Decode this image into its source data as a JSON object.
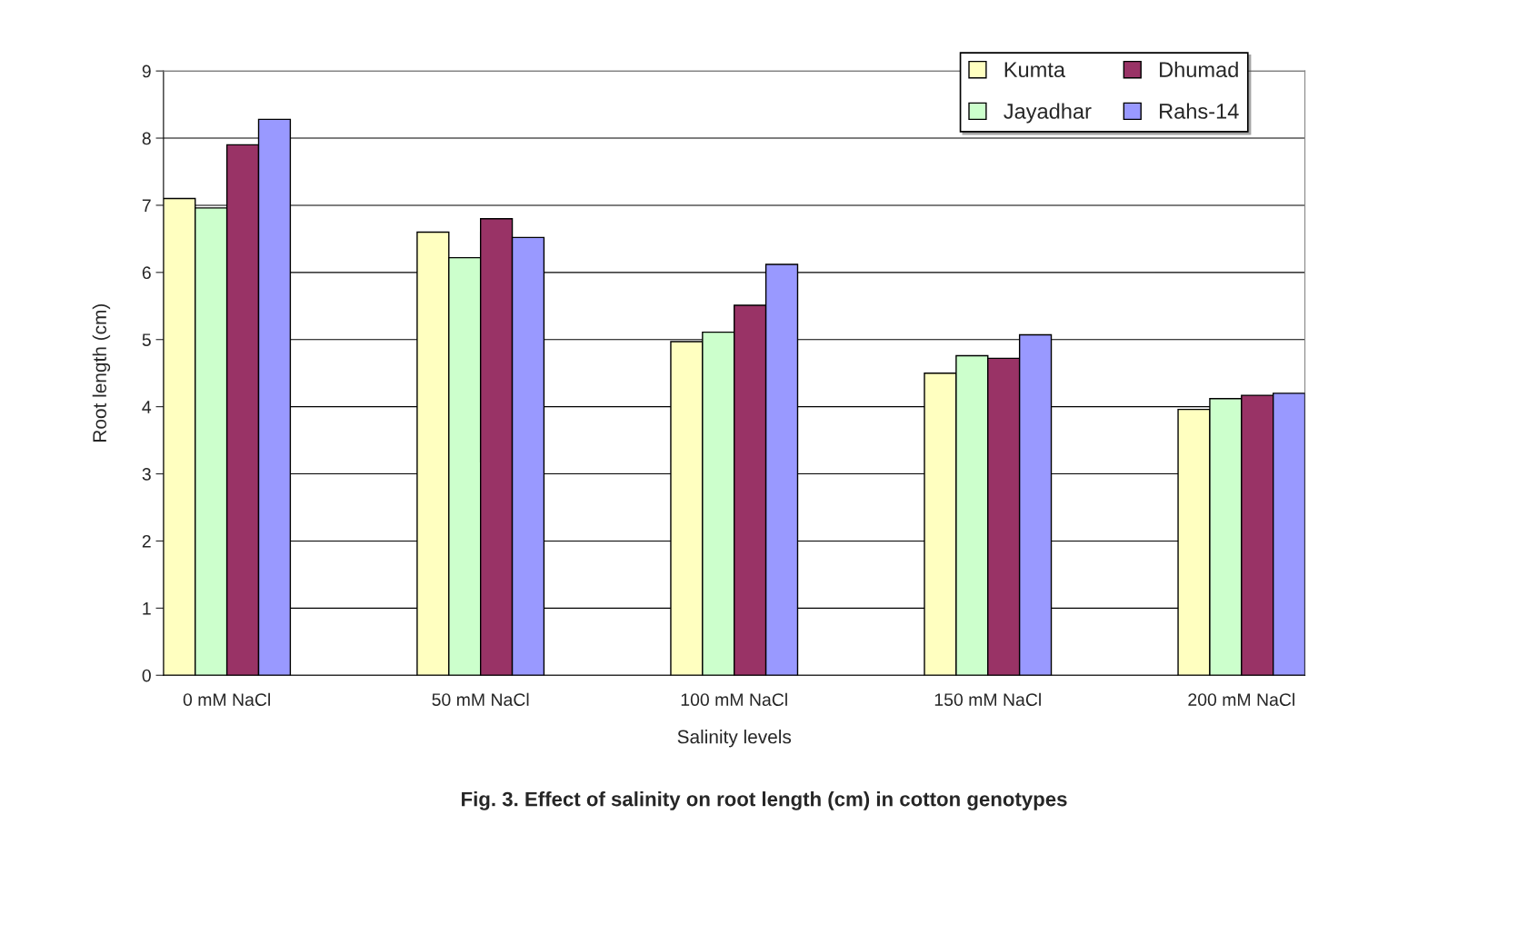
{
  "chart_data": {
    "type": "bar",
    "title": "Fig. 3. Effect of salinity on root length (cm) in cotton genotypes",
    "xlabel": "Salinity levels",
    "ylabel": "Root length (cm)",
    "categories": [
      "0 mM NaCl",
      "50 mM NaCl",
      "100 mM NaCl",
      "150 mM NaCl",
      "200 mM NaCl"
    ],
    "series": [
      {
        "name": "Kumta",
        "color": "#ffffc0",
        "values": [
          7.1,
          6.6,
          4.97,
          4.5,
          3.96
        ]
      },
      {
        "name": "Jayadhar",
        "color": "#ccffcc",
        "values": [
          6.96,
          6.22,
          5.11,
          4.76,
          4.12
        ]
      },
      {
        "name": "Dhumad",
        "color": "#993366",
        "values": [
          7.9,
          6.8,
          5.51,
          4.72,
          4.17
        ]
      },
      {
        "name": "Rahs-14",
        "color": "#9999ff",
        "values": [
          8.28,
          6.52,
          6.12,
          5.07,
          4.2
        ]
      }
    ],
    "ylim": [
      0,
      9
    ],
    "yticks": [
      0,
      1,
      2,
      3,
      4,
      5,
      6,
      7,
      8,
      9
    ],
    "grid": "y",
    "legend": "top right"
  }
}
